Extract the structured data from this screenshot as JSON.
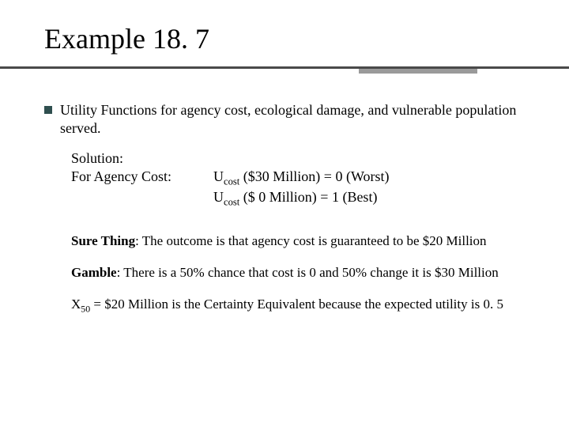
{
  "title": "Example 18. 7",
  "bullet1": "Utility Functions for agency cost, ecological damage, and vulnerable population served.",
  "solution": {
    "label1": "Solution:",
    "label2": "For Agency Cost:",
    "u1_sym": "U",
    "u1_sub": "cost",
    "u1_rest": " ($30 Million) = 0 (Worst)",
    "u2_sym": "U",
    "u2_sub": "cost",
    "u2_rest": " ($ 0 Million) = 1 (Best)"
  },
  "sure_label": "Sure Thing",
  "sure_rest": ": The outcome is that agency cost is guaranteed to be $20 Million",
  "gamble_label": "Gamble",
  "gamble_rest": ": There is a 50% chance that cost is 0 and 50% change it is $30 Million",
  "ce_sym": "X",
  "ce_sub": "50",
  "ce_rest": " = $20 Million is the Certainty Equivalent because the expected utility is 0. 5",
  "colors": {
    "bullet": "#2f4f4f",
    "line_dark": "#4a4a4a",
    "line_shadow": "#9a9a9a",
    "text": "#000000",
    "background": "#ffffff"
  }
}
